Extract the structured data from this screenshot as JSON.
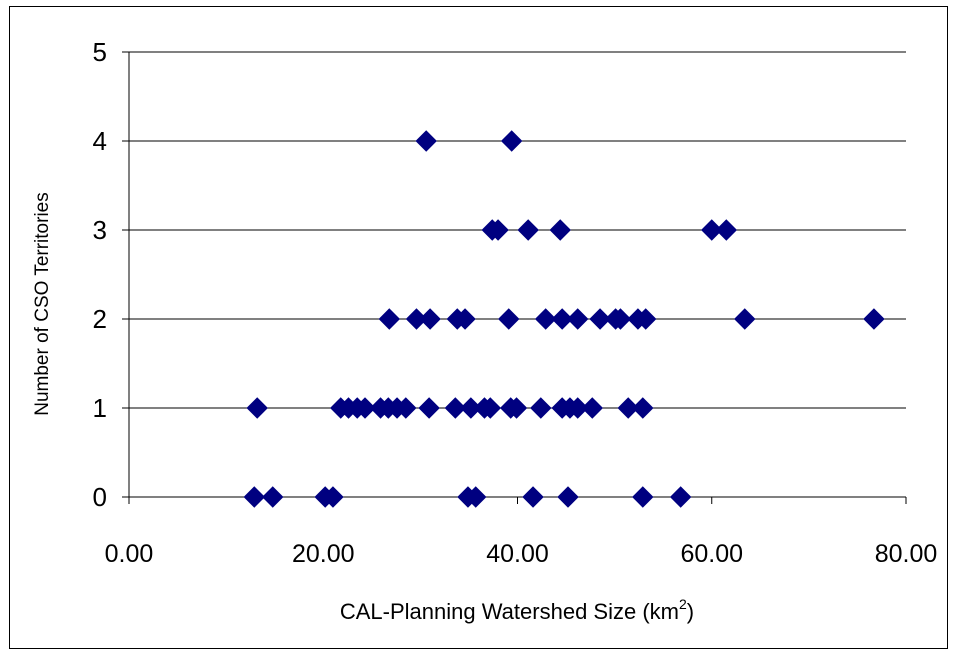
{
  "chart_data": {
    "type": "scatter",
    "title": "",
    "xlabel_main": "CAL-Planning Watershed Size (km",
    "xlabel_sup": "2",
    "xlabel_tail": ")",
    "ylabel": "Number of CSO Territories",
    "xlim": [
      0,
      80
    ],
    "ylim": [
      0,
      5
    ],
    "x_ticks": [
      0,
      20,
      40,
      60,
      80
    ],
    "x_tick_labels": [
      "0.00",
      "20.00",
      "40.00",
      "60.00",
      "80.00"
    ],
    "y_ticks": [
      0,
      1,
      2,
      3,
      4,
      5
    ],
    "y_tick_labels": [
      "0",
      "1",
      "2",
      "3",
      "4",
      "5"
    ],
    "grid": {
      "horizontal": true,
      "vertical": false
    },
    "legend": "none",
    "marker": "diamond",
    "marker_color": "#000080",
    "points": [
      {
        "x": 12.9,
        "y": 0
      },
      {
        "x": 14.8,
        "y": 0
      },
      {
        "x": 20.2,
        "y": 0
      },
      {
        "x": 21.0,
        "y": 0
      },
      {
        "x": 34.9,
        "y": 0
      },
      {
        "x": 35.7,
        "y": 0
      },
      {
        "x": 41.6,
        "y": 0
      },
      {
        "x": 45.2,
        "y": 0
      },
      {
        "x": 52.9,
        "y": 0
      },
      {
        "x": 56.8,
        "y": 0
      },
      {
        "x": 13.2,
        "y": 1
      },
      {
        "x": 21.8,
        "y": 1
      },
      {
        "x": 22.6,
        "y": 1
      },
      {
        "x": 23.5,
        "y": 1
      },
      {
        "x": 24.3,
        "y": 1
      },
      {
        "x": 25.9,
        "y": 1
      },
      {
        "x": 26.7,
        "y": 1
      },
      {
        "x": 27.6,
        "y": 1
      },
      {
        "x": 28.5,
        "y": 1
      },
      {
        "x": 30.9,
        "y": 1
      },
      {
        "x": 33.6,
        "y": 1
      },
      {
        "x": 35.2,
        "y": 1
      },
      {
        "x": 36.6,
        "y": 1
      },
      {
        "x": 37.2,
        "y": 1
      },
      {
        "x": 39.3,
        "y": 1
      },
      {
        "x": 39.9,
        "y": 1
      },
      {
        "x": 42.4,
        "y": 1
      },
      {
        "x": 44.6,
        "y": 1
      },
      {
        "x": 45.4,
        "y": 1
      },
      {
        "x": 46.2,
        "y": 1
      },
      {
        "x": 47.7,
        "y": 1
      },
      {
        "x": 51.4,
        "y": 1
      },
      {
        "x": 52.9,
        "y": 1
      },
      {
        "x": 26.8,
        "y": 2
      },
      {
        "x": 29.6,
        "y": 2
      },
      {
        "x": 31.0,
        "y": 2
      },
      {
        "x": 33.8,
        "y": 2
      },
      {
        "x": 34.6,
        "y": 2
      },
      {
        "x": 39.1,
        "y": 2
      },
      {
        "x": 42.9,
        "y": 2
      },
      {
        "x": 44.6,
        "y": 2
      },
      {
        "x": 46.2,
        "y": 2
      },
      {
        "x": 48.5,
        "y": 2
      },
      {
        "x": 50.1,
        "y": 2
      },
      {
        "x": 50.6,
        "y": 2
      },
      {
        "x": 52.4,
        "y": 2
      },
      {
        "x": 53.2,
        "y": 2
      },
      {
        "x": 63.4,
        "y": 2
      },
      {
        "x": 76.7,
        "y": 2
      },
      {
        "x": 37.4,
        "y": 3
      },
      {
        "x": 38.0,
        "y": 3
      },
      {
        "x": 41.1,
        "y": 3
      },
      {
        "x": 44.4,
        "y": 3
      },
      {
        "x": 60.0,
        "y": 3
      },
      {
        "x": 61.5,
        "y": 3
      },
      {
        "x": 30.6,
        "y": 4
      },
      {
        "x": 39.4,
        "y": 4
      }
    ]
  }
}
